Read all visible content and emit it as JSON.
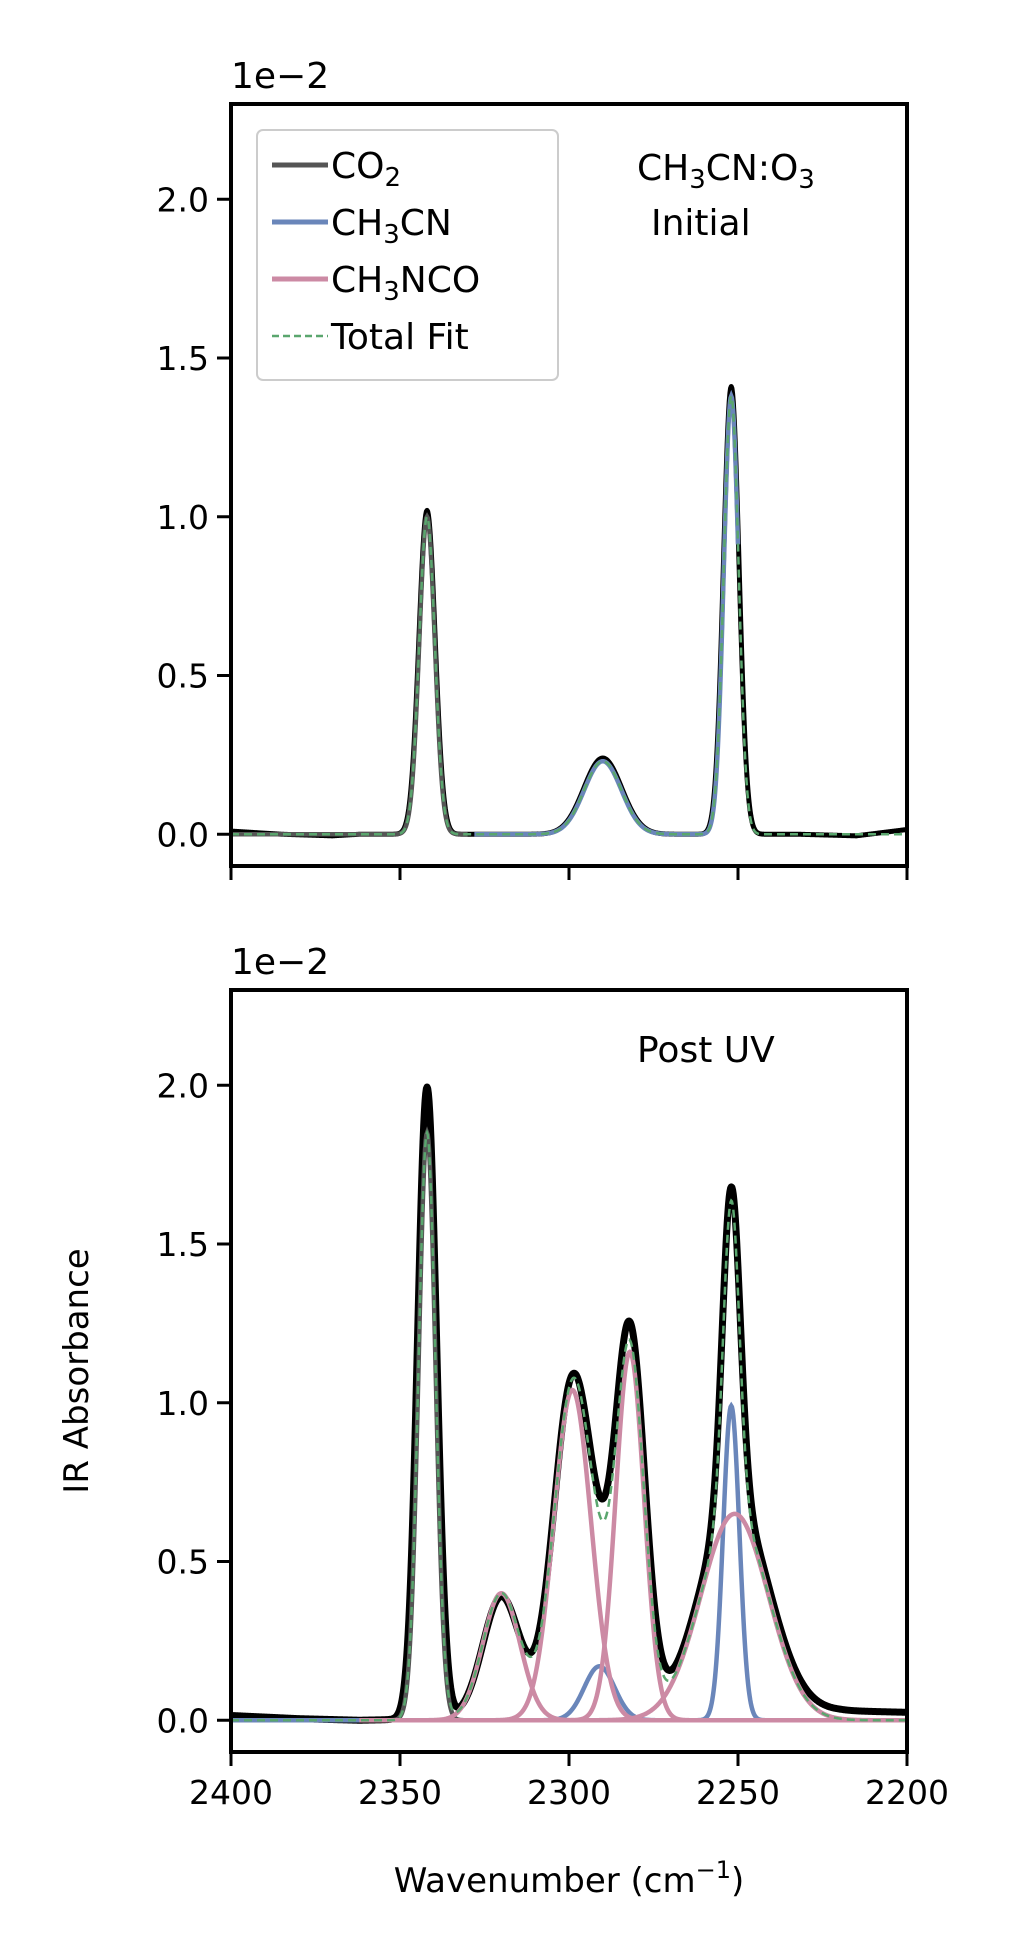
{
  "chart_data": {
    "type": "line",
    "xlabel": "Wavenumber (cm−1)",
    "ylabel": "IR Absorbance",
    "xlim": [
      2400,
      2200
    ],
    "ylim": [
      -0.1,
      2.3
    ],
    "offset_text": "1e−2",
    "x_ticks": [
      2400,
      2350,
      2300,
      2250,
      2200
    ],
    "y_ticks": [
      0.0,
      0.5,
      1.0,
      1.5,
      2.0
    ],
    "x_tick_labels": [
      "2400",
      "2350",
      "2300",
      "2250",
      "2200"
    ],
    "y_tick_labels": [
      "0.0",
      "0.5",
      "1.0",
      "1.5",
      "2.0"
    ],
    "colors": {
      "data": "#000000",
      "co2": "#555555",
      "ch3cn": "#6a86ba",
      "ch3nco": "#cc8aa4",
      "fit": "#5aa66e"
    },
    "legend": {
      "placement": "top-left",
      "entries": [
        {
          "label": "CO2",
          "key": "co2",
          "style": "solid"
        },
        {
          "label": "CH3CN",
          "key": "ch3cn",
          "style": "solid"
        },
        {
          "label": "CH3NCO",
          "key": "ch3nco",
          "style": "solid"
        },
        {
          "label": "Total Fit",
          "key": "fit",
          "style": "dashed"
        }
      ]
    },
    "panels": [
      {
        "id": "top",
        "annotation_lines": [
          "CH3CN:O3",
          "Initial"
        ],
        "components": [
          {
            "key": "co2",
            "range": [
              2400,
              2330
            ],
            "peaks": [
              {
                "center": 2342,
                "amp": 1.0,
                "sigma": 2.3
              }
            ]
          },
          {
            "key": "ch3cn",
            "range": [
              2328,
              2250
            ],
            "peaks": [
              {
                "center": 2290,
                "amp": 0.23,
                "sigma": 5.5
              },
              {
                "center": 2252,
                "amp": 1.38,
                "sigma": 2.2
              }
            ]
          }
        ],
        "observed_peaks": [
          {
            "center": 2342,
            "amp": 1.02,
            "sigma": 2.4
          },
          {
            "center": 2290,
            "amp": 0.24,
            "sigma": 5.6
          },
          {
            "center": 2252,
            "amp": 1.41,
            "sigma": 2.3
          }
        ],
        "baseline_points": [
          [
            2400,
            0.01
          ],
          [
            2385,
            0.0
          ],
          [
            2370,
            -0.005
          ],
          [
            2362,
            0.0
          ],
          [
            2232,
            0.0
          ],
          [
            2215,
            -0.005
          ],
          [
            2200,
            0.015
          ]
        ]
      },
      {
        "id": "bottom",
        "annotation_lines": [
          "Post UV"
        ],
        "components": [
          {
            "key": "co2",
            "range": [
              2400,
              2330
            ],
            "peaks": [
              {
                "center": 2342,
                "amp": 1.85,
                "sigma": 2.5
              }
            ]
          },
          {
            "key": "ch3cn",
            "range": [
              2400,
              2200
            ],
            "peaks": [
              {
                "center": 2291,
                "amp": 0.17,
                "sigma": 4.5
              },
              {
                "center": 2252,
                "amp": 0.99,
                "sigma": 2.4
              }
            ]
          },
          {
            "key": "ch3nco",
            "range": [
              2362,
              2200
            ],
            "peaks": [
              {
                "center": 2320,
                "amp": 0.4,
                "sigma": 5.5
              },
              {
                "center": 2299,
                "amp": 1.04,
                "sigma": 5.5
              },
              {
                "center": 2282,
                "amp": 1.16,
                "sigma": 4.2
              },
              {
                "center": 2251,
                "amp": 0.65,
                "sigma": 10.0
              }
            ]
          }
        ],
        "observed_peaks": [
          {
            "center": 2342,
            "amp": 1.99,
            "sigma": 2.8
          },
          {
            "center": 2320,
            "amp": 0.38,
            "sigma": 5.5
          },
          {
            "center": 2299,
            "amp": 1.04,
            "sigma": 5.6
          },
          {
            "center": 2282,
            "amp": 1.2,
            "sigma": 4.4
          },
          {
            "center": 2291,
            "amp": 0.17,
            "sigma": 4.5
          },
          {
            "center": 2252,
            "amp": 1.0,
            "sigma": 2.6
          },
          {
            "center": 2251,
            "amp": 0.66,
            "sigma": 10.0
          }
        ],
        "baseline_points": [
          [
            2400,
            0.015
          ],
          [
            2380,
            0.005
          ],
          [
            2362,
            0.0
          ],
          [
            2220,
            0.03
          ],
          [
            2200,
            0.025
          ]
        ]
      }
    ]
  }
}
